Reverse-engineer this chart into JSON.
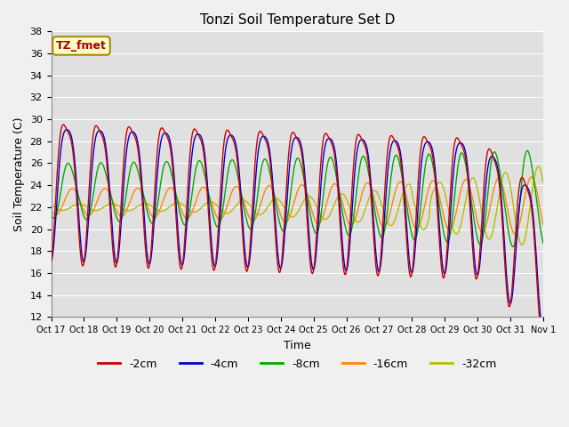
{
  "title": "Tonzi Soil Temperature Set D",
  "xlabel": "Time",
  "ylabel": "Soil Temperature (C)",
  "ylim": [
    12,
    38
  ],
  "yticks": [
    12,
    14,
    16,
    18,
    20,
    22,
    24,
    26,
    28,
    30,
    32,
    34,
    36,
    38
  ],
  "annotation": "TZ_fmet",
  "fig_bg": "#f0f0f0",
  "plot_bg": "#e0e0e0",
  "grid_color": "#ffffff",
  "colors": {
    "-2cm": "#cc0000",
    "-4cm": "#0000cc",
    "-8cm": "#00aa00",
    "-16cm": "#ff8800",
    "-32cm": "#bbbb00"
  },
  "tick_labels": [
    "Oct 17",
    "Oct 18",
    "Oct 19",
    "Oct 20",
    "Oct 21",
    "Oct 22",
    "Oct 23",
    "Oct 24",
    "Oct 25",
    "Oct 26",
    "Oct 27",
    "Oct 28",
    "Oct 29",
    "Oct 30",
    "Oct 31",
    "Nov 1"
  ],
  "num_days": 15,
  "pts_per_day": 48
}
